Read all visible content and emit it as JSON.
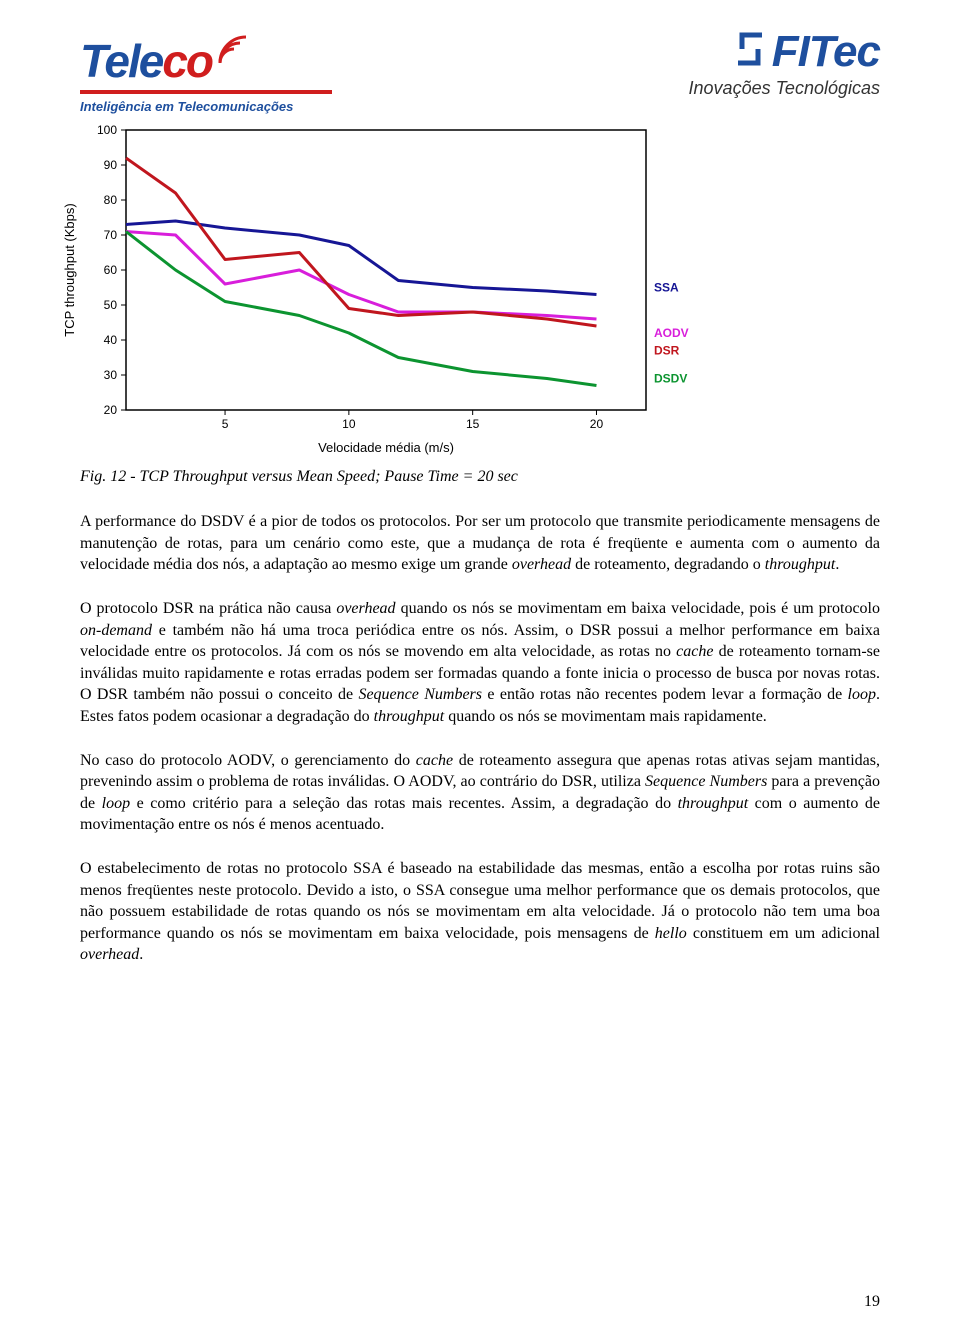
{
  "header": {
    "teleco": {
      "word_tel": "Tele",
      "word_eco": "co",
      "subtitle": "Inteligência em Telecomunicações"
    },
    "fitec": {
      "word": "FITec",
      "subtitle": "Inovações Tecnológicas"
    }
  },
  "chart": {
    "type": "line",
    "background_color": "#ffffff",
    "axis_color": "#000000",
    "tick_font_size": 12,
    "axis_label_font_size": 13,
    "label_font_size": 12,
    "line_width": 3,
    "x_label": "Velocidade média (m/s)",
    "y_label": "TCP throughput (Kbps)",
    "xlim": [
      1,
      22
    ],
    "ylim": [
      20,
      100
    ],
    "x_ticks": [
      5,
      10,
      15,
      20
    ],
    "y_ticks": [
      20,
      30,
      40,
      50,
      60,
      70,
      80,
      90,
      100
    ],
    "series": [
      {
        "name": "SSA",
        "color": "#161695",
        "label_y": 55,
        "data": [
          {
            "x": 1,
            "y": 73
          },
          {
            "x": 3,
            "y": 74
          },
          {
            "x": 5,
            "y": 72
          },
          {
            "x": 8,
            "y": 70
          },
          {
            "x": 10,
            "y": 67
          },
          {
            "x": 12,
            "y": 57
          },
          {
            "x": 15,
            "y": 55
          },
          {
            "x": 18,
            "y": 54
          },
          {
            "x": 20,
            "y": 53
          }
        ]
      },
      {
        "name": "AODV",
        "color": "#d81edb",
        "label_y": 42,
        "data": [
          {
            "x": 1,
            "y": 71
          },
          {
            "x": 3,
            "y": 70
          },
          {
            "x": 5,
            "y": 56
          },
          {
            "x": 8,
            "y": 60
          },
          {
            "x": 10,
            "y": 53
          },
          {
            "x": 12,
            "y": 48
          },
          {
            "x": 15,
            "y": 48
          },
          {
            "x": 18,
            "y": 47
          },
          {
            "x": 20,
            "y": 46
          }
        ]
      },
      {
        "name": "DSR",
        "color": "#c0161e",
        "label_y": 37,
        "data": [
          {
            "x": 1,
            "y": 92
          },
          {
            "x": 3,
            "y": 82
          },
          {
            "x": 5,
            "y": 63
          },
          {
            "x": 8,
            "y": 65
          },
          {
            "x": 10,
            "y": 49
          },
          {
            "x": 12,
            "y": 47
          },
          {
            "x": 15,
            "y": 48
          },
          {
            "x": 18,
            "y": 46
          },
          {
            "x": 20,
            "y": 44
          }
        ]
      },
      {
        "name": "DSDV",
        "color": "#0c9430",
        "label_y": 29,
        "data": [
          {
            "x": 1,
            "y": 71
          },
          {
            "x": 3,
            "y": 60
          },
          {
            "x": 5,
            "y": 51
          },
          {
            "x": 8,
            "y": 47
          },
          {
            "x": 10,
            "y": 42
          },
          {
            "x": 12,
            "y": 35
          },
          {
            "x": 15,
            "y": 31
          },
          {
            "x": 18,
            "y": 29
          },
          {
            "x": 20,
            "y": 27
          }
        ]
      }
    ]
  },
  "caption": "Fig. 12 - TCP Throughput versus Mean Speed; Pause Time = 20 sec",
  "paragraphs": {
    "p1": "A performance do DSDV é a pior de todos os protocolos. Por ser um protocolo que transmite periodicamente mensagens de manutenção de rotas, para um cenário como este, que a mudança de rota é freqüente e aumenta com o aumento da velocidade média dos nós, a adaptação ao mesmo exige um grande ",
    "p1_i1": "overhead",
    "p1_b": " de roteamento, degradando o ",
    "p1_i2": "throughput",
    "p1_c": ".",
    "p2": "O protocolo DSR na prática não causa ",
    "p2_i1": "overhead",
    "p2_b": " quando os nós se movimentam em baixa velocidade, pois é um protocolo ",
    "p2_i2": "on-demand",
    "p2_c": " e também não há uma troca periódica entre os nós. Assim, o DSR possui a melhor performance em baixa velocidade entre os protocolos. Já com os nós se movendo em alta velocidade, as rotas no ",
    "p2_i3": "cache",
    "p2_d": " de roteamento tornam-se inválidas muito rapidamente e rotas erradas podem ser formadas quando a fonte inicia o processo de busca por novas rotas. O DSR também não possui o conceito de ",
    "p2_i4": "Sequence Numbers",
    "p2_e": " e então rotas não recentes podem levar a formação de ",
    "p2_i5": "loop",
    "p2_f": ". Estes fatos podem ocasionar a degradação do ",
    "p2_i6": "throughput",
    "p2_g": " quando os nós se movimentam mais rapidamente.",
    "p3": "No caso do protocolo AODV, o gerenciamento do ",
    "p3_i1": "cache",
    "p3_b": " de roteamento assegura que apenas rotas ativas sejam mantidas, prevenindo assim o problema de rotas inválidas. O AODV, ao contrário do DSR, utiliza ",
    "p3_i2": "Sequence Numbers",
    "p3_c": " para a prevenção de ",
    "p3_i3": "loop",
    "p3_d": " e como critério para a seleção das rotas mais recentes. Assim, a degradação do ",
    "p3_i4": "throughput",
    "p3_e": " com o aumento de movimentação entre os nós é menos acentuado.",
    "p4": "O estabelecimento de rotas no protocolo SSA é baseado na estabilidade das mesmas, então a escolha por rotas ruins são menos freqüentes neste protocolo. Devido a isto, o SSA consegue uma melhor performance que os demais protocolos, que não possuem estabilidade de rotas quando os nós se movimentam em alta velocidade. Já o protocolo não tem uma boa performance quando os nós se movimentam em baixa velocidade, pois mensagens de ",
    "p4_i1": "hello",
    "p4_b": " constituem em um adicional ",
    "p4_i2": "overhead",
    "p4_c": "."
  },
  "page_number": "19"
}
